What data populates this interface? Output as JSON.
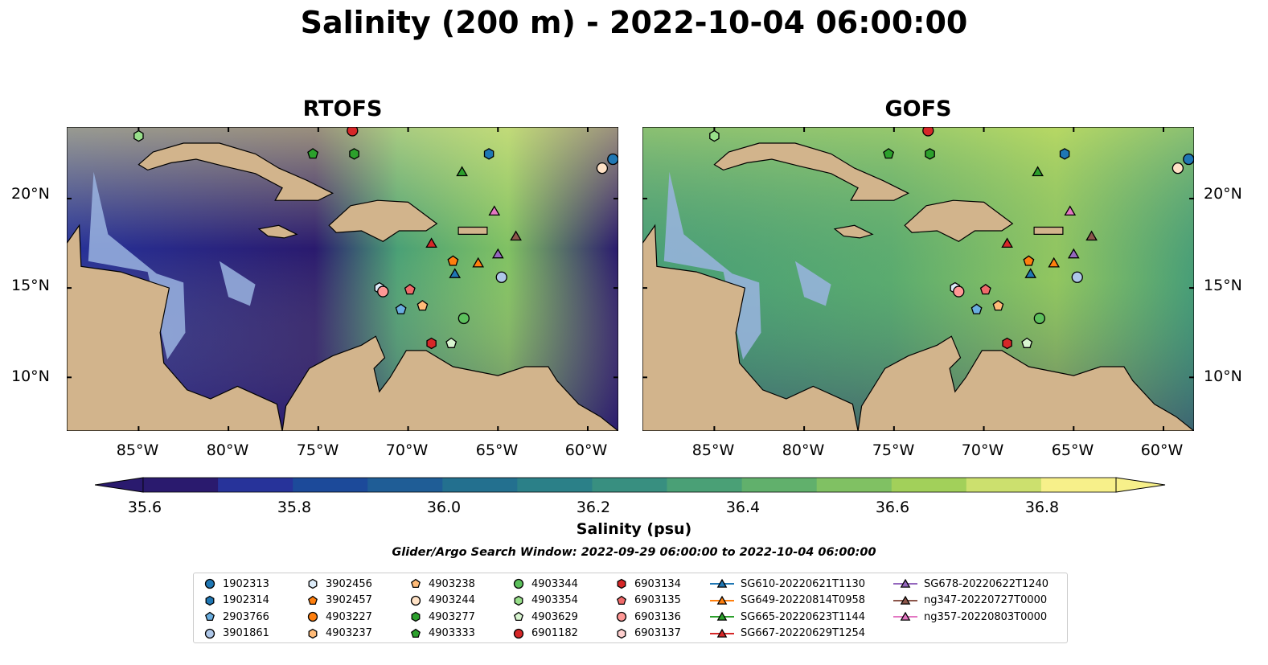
{
  "title": "Salinity (200 m) - 2022-10-04 06:00:00",
  "panels": [
    {
      "title": "RTOFS",
      "model": "rtofs"
    },
    {
      "title": "GOFS",
      "model": "gofs"
    }
  ],
  "map": {
    "lon_range": [
      -89,
      -58.3
    ],
    "lat_range": [
      7,
      24
    ],
    "x_ticks": [
      {
        "lon": -85,
        "label": "85°W"
      },
      {
        "lon": -80,
        "label": "80°W"
      },
      {
        "lon": -75,
        "label": "75°W"
      },
      {
        "lon": -70,
        "label": "70°W"
      },
      {
        "lon": -65,
        "label": "65°W"
      },
      {
        "lon": -60,
        "label": "60°W"
      }
    ],
    "y_ticks": [
      {
        "lat": 20,
        "label": "20°N"
      },
      {
        "lat": 15,
        "label": "15°N"
      },
      {
        "lat": 10,
        "label": "10°N"
      }
    ],
    "land_color": "#d2b48c",
    "shelf_color": "#9ab4e0"
  },
  "colorbar": {
    "label": "Salinity (psu)",
    "min": 35.5,
    "max": 37.0,
    "ticks": [
      "35.6",
      "35.8",
      "36.0",
      "36.2",
      "36.4",
      "36.6",
      "36.8"
    ],
    "colors": [
      "#2a1a6e",
      "#27339a",
      "#1c4a9a",
      "#1f5d96",
      "#23708f",
      "#2b8088",
      "#388f80",
      "#4aa076",
      "#61b06c",
      "#80c163",
      "#a2d05a",
      "#cce06e",
      "#f7f08a"
    ]
  },
  "search_window": "Glider/Argo Search Window: 2022-09-29 06:00:00 to 2022-10-04 06:00:00",
  "legend": {
    "columns": [
      [
        {
          "label": "1902313",
          "shape": "circle",
          "color": "#1f77b4"
        },
        {
          "label": "1902314",
          "shape": "hexagon",
          "color": "#1f77b4"
        },
        {
          "label": "2903766",
          "shape": "pentagon",
          "color": "#6aaee0"
        },
        {
          "label": "3901861",
          "shape": "circle",
          "color": "#aec7e8"
        }
      ],
      [
        {
          "label": "3902456",
          "shape": "hexagon",
          "color": "#dcebf8"
        },
        {
          "label": "3902457",
          "shape": "pentagon",
          "color": "#ff7f0e"
        },
        {
          "label": "4903227",
          "shape": "circle",
          "color": "#ff7f0e"
        },
        {
          "label": "4903237",
          "shape": "hexagon",
          "color": "#ffbb78"
        }
      ],
      [
        {
          "label": "4903238",
          "shape": "pentagon",
          "color": "#ffbb78"
        },
        {
          "label": "4903244",
          "shape": "circle",
          "color": "#ffe2c6"
        },
        {
          "label": "4903277",
          "shape": "hexagon",
          "color": "#2ca02c"
        },
        {
          "label": "4903333",
          "shape": "pentagon",
          "color": "#2ca02c"
        }
      ],
      [
        {
          "label": "4903344",
          "shape": "circle",
          "color": "#5cc05c"
        },
        {
          "label": "4903354",
          "shape": "hexagon",
          "color": "#98df8a"
        },
        {
          "label": "4903629",
          "shape": "pentagon",
          "color": "#d8f5d0"
        },
        {
          "label": "6901182",
          "shape": "circle",
          "color": "#d62728"
        }
      ],
      [
        {
          "label": "6903134",
          "shape": "hexagon",
          "color": "#d62728"
        },
        {
          "label": "6903135",
          "shape": "pentagon",
          "color": "#f06a6a"
        },
        {
          "label": "6903136",
          "shape": "circle",
          "color": "#ff9896"
        },
        {
          "label": "6903137",
          "shape": "hexagon",
          "color": "#ffd0cf"
        }
      ],
      [
        {
          "label": "SG610-20220621T1130",
          "shape": "triangle",
          "color": "#1f77b4"
        },
        {
          "label": "SG649-20220814T0958",
          "shape": "triangle",
          "color": "#ff7f0e"
        },
        {
          "label": "SG665-20220623T1144",
          "shape": "triangle",
          "color": "#2ca02c"
        },
        {
          "label": "SG667-20220629T1254",
          "shape": "triangle",
          "color": "#d62728"
        }
      ],
      [
        {
          "label": "SG678-20220622T1240",
          "shape": "triangle",
          "color": "#9467bd"
        },
        {
          "label": "ng347-20220727T0000",
          "shape": "triangle",
          "color": "#8c564b"
        },
        {
          "label": "ng357-20220803T0000",
          "shape": "triangle",
          "color": "#e377c2"
        }
      ]
    ]
  },
  "observations": [
    {
      "label": "1902313",
      "shape": "circle",
      "color": "#1f77b4",
      "lon": -58.6,
      "lat": 22.2
    },
    {
      "label": "1902314",
      "shape": "hexagon",
      "color": "#1f77b4",
      "lon": -65.5,
      "lat": 22.5
    },
    {
      "label": "2903766",
      "shape": "pentagon",
      "color": "#6aaee0",
      "lon": -70.4,
      "lat": 13.8
    },
    {
      "label": "3901861",
      "shape": "circle",
      "color": "#aec7e8",
      "lon": -64.8,
      "lat": 15.6
    },
    {
      "label": "3902456",
      "shape": "hexagon",
      "color": "#dcebf8",
      "lon": -71.6,
      "lat": 15.0
    },
    {
      "label": "3902457",
      "shape": "pentagon",
      "color": "#ff7f0e",
      "lon": -67.5,
      "lat": 16.5
    },
    {
      "label": "4903238",
      "shape": "pentagon",
      "color": "#ffbb78",
      "lon": -69.2,
      "lat": 14.0
    },
    {
      "label": "4903244",
      "shape": "circle",
      "color": "#ffe2c6",
      "lon": -59.2,
      "lat": 21.7
    },
    {
      "label": "4903277",
      "shape": "hexagon",
      "color": "#2ca02c",
      "lon": -73.0,
      "lat": 22.5
    },
    {
      "label": "4903333",
      "shape": "pentagon",
      "color": "#2ca02c",
      "lon": -75.3,
      "lat": 22.5
    },
    {
      "label": "4903344",
      "shape": "circle",
      "color": "#5cc05c",
      "lon": -66.9,
      "lat": 13.3
    },
    {
      "label": "4903354",
      "shape": "hexagon",
      "color": "#98df8a",
      "lon": -85.0,
      "lat": 23.5
    },
    {
      "label": "4903629",
      "shape": "pentagon",
      "color": "#d8f5d0",
      "lon": -67.6,
      "lat": 11.9
    },
    {
      "label": "6901182",
      "shape": "circle",
      "color": "#d62728",
      "lon": -73.1,
      "lat": 23.8
    },
    {
      "label": "6903134",
      "shape": "hexagon",
      "color": "#d62728",
      "lon": -68.7,
      "lat": 11.9
    },
    {
      "label": "6903135",
      "shape": "pentagon",
      "color": "#f06a6a",
      "lon": -69.9,
      "lat": 14.9
    },
    {
      "label": "6903136",
      "shape": "circle",
      "color": "#ff9896",
      "lon": -71.4,
      "lat": 14.8
    },
    {
      "label": "SG610-20220621T1130",
      "shape": "triangle",
      "color": "#1f77b4",
      "lon": -67.4,
      "lat": 15.8
    },
    {
      "label": "SG649-20220814T0958",
      "shape": "triangle",
      "color": "#ff7f0e",
      "lon": -66.1,
      "lat": 16.4
    },
    {
      "label": "SG665-20220623T1144",
      "shape": "triangle",
      "color": "#2ca02c",
      "lon": -67.0,
      "lat": 21.5
    },
    {
      "label": "SG667-20220629T1254",
      "shape": "triangle",
      "color": "#d62728",
      "lon": -68.7,
      "lat": 17.5
    },
    {
      "label": "SG678-20220622T1240",
      "shape": "triangle",
      "color": "#9467bd",
      "lon": -65.0,
      "lat": 16.9
    },
    {
      "label": "ng347-20220727T0000",
      "shape": "triangle",
      "color": "#8c564b",
      "lon": -64.0,
      "lat": 17.9
    },
    {
      "label": "ng357-20220803T0000",
      "shape": "triangle",
      "color": "#e377c2",
      "lon": -65.2,
      "lat": 19.3
    }
  ]
}
